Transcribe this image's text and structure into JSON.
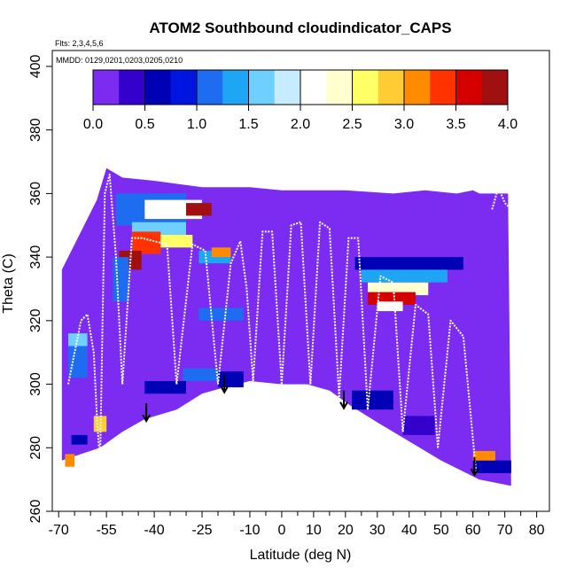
{
  "chart_data": {
    "type": "heatmap",
    "title": "ATOM2 Southbound cloudindicator_CAPS",
    "flights_note": "Flts: 2,3,4,5,6",
    "dates_note": "MMDD: 0129,0201,0203,0205,0210",
    "xlabel": "Latitude (deg N)",
    "ylabel": "Theta (C)",
    "xlim": [
      -72,
      84
    ],
    "ylim": [
      260,
      405
    ],
    "x_tick_values": [
      -70,
      -55,
      -40,
      -25,
      -10,
      0,
      10,
      20,
      30,
      40,
      50,
      60,
      70,
      80
    ],
    "x_tick_labels": [
      "-70",
      "-55",
      "-40",
      "-25",
      "-10",
      "0",
      "10",
      "20",
      "30",
      "40",
      "50",
      "60",
      "70",
      "80"
    ],
    "x_minor_ticks": [
      -65,
      -60,
      -50,
      -45,
      -35,
      -30,
      -20,
      -15,
      -5,
      5,
      15,
      25,
      35,
      45,
      55,
      65,
      75
    ],
    "y_tick_values": [
      260,
      280,
      300,
      320,
      340,
      360,
      380,
      400
    ],
    "y_tick_labels": [
      "260",
      "280",
      "300",
      "320",
      "340",
      "360",
      "380",
      "400"
    ],
    "colorbar": {
      "min": 0,
      "max": 4,
      "ticks": [
        0.0,
        0.5,
        1.0,
        1.5,
        2.0,
        2.5,
        3.0,
        3.5,
        4.0
      ],
      "tick_labels": [
        "0.0",
        "0.5",
        "1.0",
        "1.5",
        "2.0",
        "2.5",
        "3.0",
        "3.5",
        "4.0"
      ],
      "colors": [
        "#7b2cf0",
        "#3300cc",
        "#0000b4",
        "#0016e0",
        "#1e6cf0",
        "#1ea6f5",
        "#6fd0ff",
        "#c8ecff",
        "#ffffff",
        "#ffffd0",
        "#ffff66",
        "#ffcc33",
        "#ff8c00",
        "#ff3300",
        "#d40000",
        "#a01010"
      ]
    },
    "background_color": "#7b2cf0",
    "domain_outline": [
      [
        -69,
        336
      ],
      [
        -63,
        348
      ],
      [
        -58,
        358
      ],
      [
        -55,
        368
      ],
      [
        -50,
        365
      ],
      [
        -40,
        364
      ],
      [
        -25,
        362
      ],
      [
        -10,
        362
      ],
      [
        0,
        361
      ],
      [
        10,
        361
      ],
      [
        20,
        361
      ],
      [
        35,
        360
      ],
      [
        45,
        361
      ],
      [
        55,
        360
      ],
      [
        60,
        361
      ],
      [
        62,
        360
      ],
      [
        71,
        360
      ],
      [
        72,
        268
      ],
      [
        62,
        270
      ],
      [
        50,
        276
      ],
      [
        40,
        282
      ],
      [
        30,
        288
      ],
      [
        22,
        293
      ],
      [
        15,
        298
      ],
      [
        8,
        300
      ],
      [
        0,
        300
      ],
      [
        -10,
        301
      ],
      [
        -18,
        299
      ],
      [
        -25,
        297
      ],
      [
        -33,
        292
      ],
      [
        -43,
        289
      ],
      [
        -50,
        285
      ],
      [
        -57,
        280
      ],
      [
        -63,
        278
      ],
      [
        -69,
        276
      ]
    ],
    "high_value_patches": [
      {
        "x": [
          -52,
          -30
        ],
        "y": [
          350,
          360
        ],
        "value": 1.2
      },
      {
        "x": [
          -43,
          -25
        ],
        "y": [
          352,
          358
        ],
        "value": 2.0
      },
      {
        "x": [
          -30,
          -22
        ],
        "y": [
          353,
          357
        ],
        "value": 3.8
      },
      {
        "x": [
          -47,
          -30
        ],
        "y": [
          344,
          351
        ],
        "value": 1.6
      },
      {
        "x": [
          -47,
          -38
        ],
        "y": [
          341,
          348
        ],
        "value": 3.4
      },
      {
        "x": [
          -38,
          -28
        ],
        "y": [
          343,
          347
        ],
        "value": 2.5
      },
      {
        "x": [
          -51,
          -44
        ],
        "y": [
          336,
          342
        ],
        "value": 3.8
      },
      {
        "x": [
          -53,
          -48
        ],
        "y": [
          326,
          340
        ],
        "value": 1.2
      },
      {
        "x": [
          -26,
          -16
        ],
        "y": [
          338,
          342
        ],
        "value": 1.4
      },
      {
        "x": [
          -22,
          -16
        ],
        "y": [
          340,
          343
        ],
        "value": 3.2
      },
      {
        "x": [
          -26,
          -12
        ],
        "y": [
          320,
          324
        ],
        "value": 1.2
      },
      {
        "x": [
          23,
          57
        ],
        "y": [
          336,
          340
        ],
        "value": 0.6
      },
      {
        "x": [
          25,
          52
        ],
        "y": [
          332,
          336
        ],
        "value": 1.4
      },
      {
        "x": [
          27,
          46
        ],
        "y": [
          328,
          332
        ],
        "value": 2.3
      },
      {
        "x": [
          27,
          42
        ],
        "y": [
          325,
          329
        ],
        "value": 3.6
      },
      {
        "x": [
          30,
          38
        ],
        "y": [
          323,
          326
        ],
        "value": 2.0
      },
      {
        "x": [
          -67,
          -61
        ],
        "y": [
          302,
          312
        ],
        "value": 1.0
      },
      {
        "x": [
          -67,
          -61
        ],
        "y": [
          312,
          316
        ],
        "value": 1.6
      },
      {
        "x": [
          -43,
          -30
        ],
        "y": [
          297,
          301
        ],
        "value": 0.6
      },
      {
        "x": [
          -31,
          -20
        ],
        "y": [
          301,
          305
        ],
        "value": 1.2
      },
      {
        "x": [
          -20,
          -12
        ],
        "y": [
          299,
          304
        ],
        "value": 0.6
      },
      {
        "x": [
          -66,
          -61
        ],
        "y": [
          281,
          284
        ],
        "value": 0.7
      },
      {
        "x": [
          -59,
          -55
        ],
        "y": [
          285,
          290
        ],
        "value": 2.8
      },
      {
        "x": [
          -68,
          -65
        ],
        "y": [
          274,
          278
        ],
        "value": 3.0
      },
      {
        "x": [
          22,
          35
        ],
        "y": [
          292,
          298
        ],
        "value": 0.6
      },
      {
        "x": [
          38,
          48
        ],
        "y": [
          284,
          290
        ],
        "value": 0.4
      },
      {
        "x": [
          60,
          72
        ],
        "y": [
          272,
          276
        ],
        "value": 0.6
      },
      {
        "x": [
          60,
          67
        ],
        "y": [
          276,
          279
        ],
        "value": 3.0
      }
    ],
    "flight_tracks": [
      {
        "x": [
          -67,
          -63,
          -61,
          -59,
          -58,
          -57
        ],
        "y": [
          300,
          320,
          322,
          310,
          290,
          275
        ]
      },
      {
        "x": [
          -57,
          -55.5,
          -54,
          -52,
          -50
        ],
        "y": [
          275,
          360,
          366,
          340,
          300
        ]
      },
      {
        "x": [
          -50,
          -47,
          -44,
          -40,
          -36,
          -33
        ],
        "y": [
          300,
          346,
          346,
          345,
          344,
          300
        ]
      },
      {
        "x": [
          -33,
          -28,
          -24,
          -20
        ],
        "y": [
          300,
          344,
          342,
          300
        ]
      },
      {
        "x": [
          -20,
          -16,
          -13,
          -11,
          -9
        ],
        "y": [
          300,
          338,
          345,
          330,
          301
        ]
      },
      {
        "x": [
          -9,
          -6,
          -3,
          0
        ],
        "y": [
          301,
          348,
          348,
          300
        ]
      },
      {
        "x": [
          0,
          3,
          6,
          9
        ],
        "y": [
          300,
          350,
          351,
          300
        ]
      },
      {
        "x": [
          9,
          12,
          15,
          18
        ],
        "y": [
          300,
          351,
          349,
          296
        ]
      },
      {
        "x": [
          18,
          21,
          24,
          27
        ],
        "y": [
          296,
          346,
          346,
          292
        ]
      },
      {
        "x": [
          27,
          31,
          35,
          38
        ],
        "y": [
          292,
          334,
          332,
          285
        ]
      },
      {
        "x": [
          38,
          42,
          46,
          49
        ],
        "y": [
          285,
          325,
          322,
          280
        ]
      },
      {
        "x": [
          49,
          53,
          57,
          61
        ],
        "y": [
          280,
          320,
          315,
          272
        ]
      },
      {
        "x": [
          66,
          68,
          70,
          71
        ],
        "y": [
          355,
          362,
          357,
          356
        ]
      }
    ],
    "markers": [
      {
        "x": -42.5,
        "y": 294
      },
      {
        "x": -18,
        "y": 303
      },
      {
        "x": 19.5,
        "y": 298
      },
      {
        "x": 60.5,
        "y": 277
      }
    ]
  }
}
